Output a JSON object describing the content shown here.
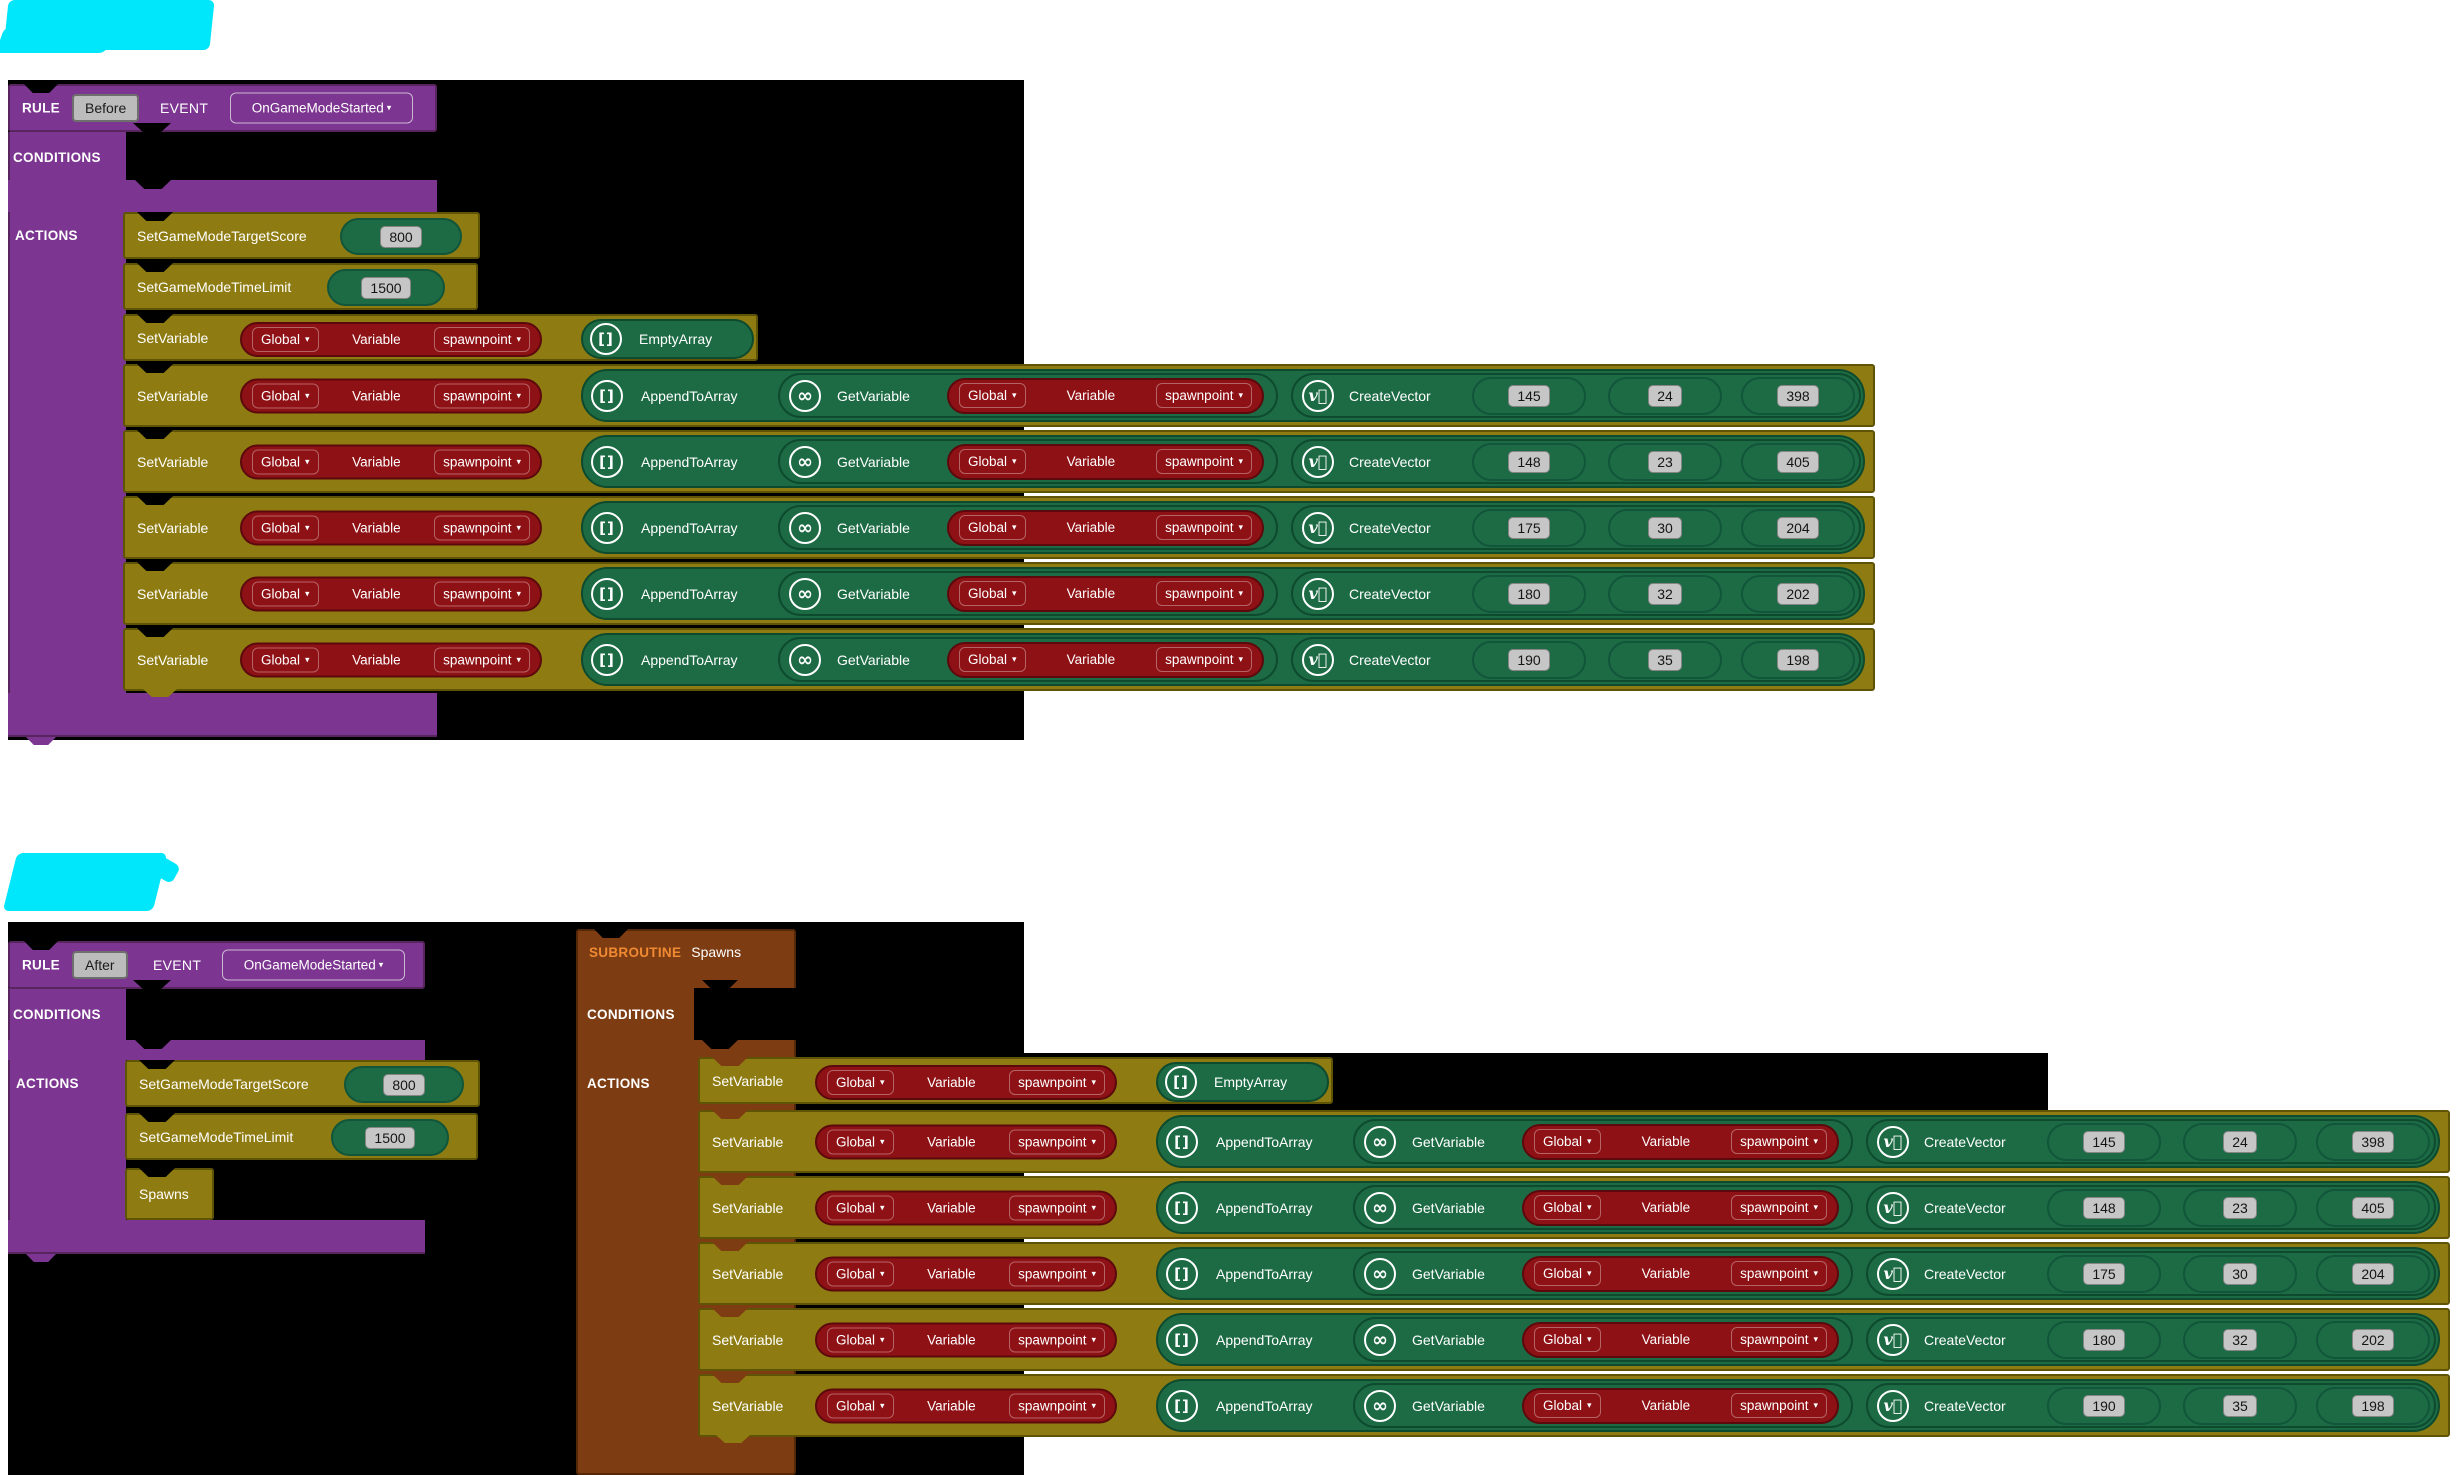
{
  "redaction_marks": {
    "color": "#00e6fa",
    "items": [
      {
        "location": "top-left"
      },
      {
        "location": "above-after-rule"
      }
    ]
  },
  "shared": {
    "rule_label": "RULE",
    "event_label": "EVENT",
    "event_name": "OnGameModeStarted",
    "conditions_label": "CONDITIONS",
    "actions_label": "ACTIONS",
    "set_variable_label": "SetVariable",
    "scope": "Global",
    "variable_label": "Variable",
    "variable_name": "spawnpoint",
    "empty_array_label": "EmptyArray",
    "append_label": "AppendToArray",
    "get_variable_label": "GetVariable",
    "create_vector_label": "CreateVector",
    "icons": {
      "array": "[]",
      "infinity": "∞",
      "vector": "v⃗",
      "dropdown_arrow": "▾"
    }
  },
  "rule_before": {
    "mode": "Before",
    "target_score": {
      "label": "SetGameModeTargetScore",
      "value": "800"
    },
    "time_limit": {
      "label": "SetGameModeTimeLimit",
      "value": "1500"
    },
    "vectors": [
      [
        "145",
        "24",
        "398"
      ],
      [
        "148",
        "23",
        "405"
      ],
      [
        "175",
        "30",
        "204"
      ],
      [
        "180",
        "32",
        "202"
      ],
      [
        "190",
        "35",
        "198"
      ]
    ]
  },
  "rule_after": {
    "mode": "After",
    "target_score": {
      "label": "SetGameModeTargetScore",
      "value": "800"
    },
    "time_limit": {
      "label": "SetGameModeTimeLimit",
      "value": "1500"
    },
    "call_label": "Spawns"
  },
  "subroutine": {
    "label": "SUBROUTINE",
    "name": "Spawns",
    "vectors": [
      [
        "145",
        "24",
        "398"
      ],
      [
        "148",
        "23",
        "405"
      ],
      [
        "175",
        "30",
        "204"
      ],
      [
        "180",
        "32",
        "202"
      ],
      [
        "190",
        "35",
        "198"
      ]
    ]
  },
  "colors": {
    "canvas": "#000000",
    "purple": "#7c3590",
    "purple_border": "#58255f",
    "olive": "#8e7c12",
    "olive_border": "#5f5406",
    "green": "#1d6b45",
    "green_border": "#0d4a2e",
    "red": "#8e1115",
    "red_border": "#5c090d",
    "brown": "#7d3c12",
    "brown_border": "#542806",
    "subroutine_label_color": "#f08a33",
    "cyan": "#00e6fa"
  }
}
